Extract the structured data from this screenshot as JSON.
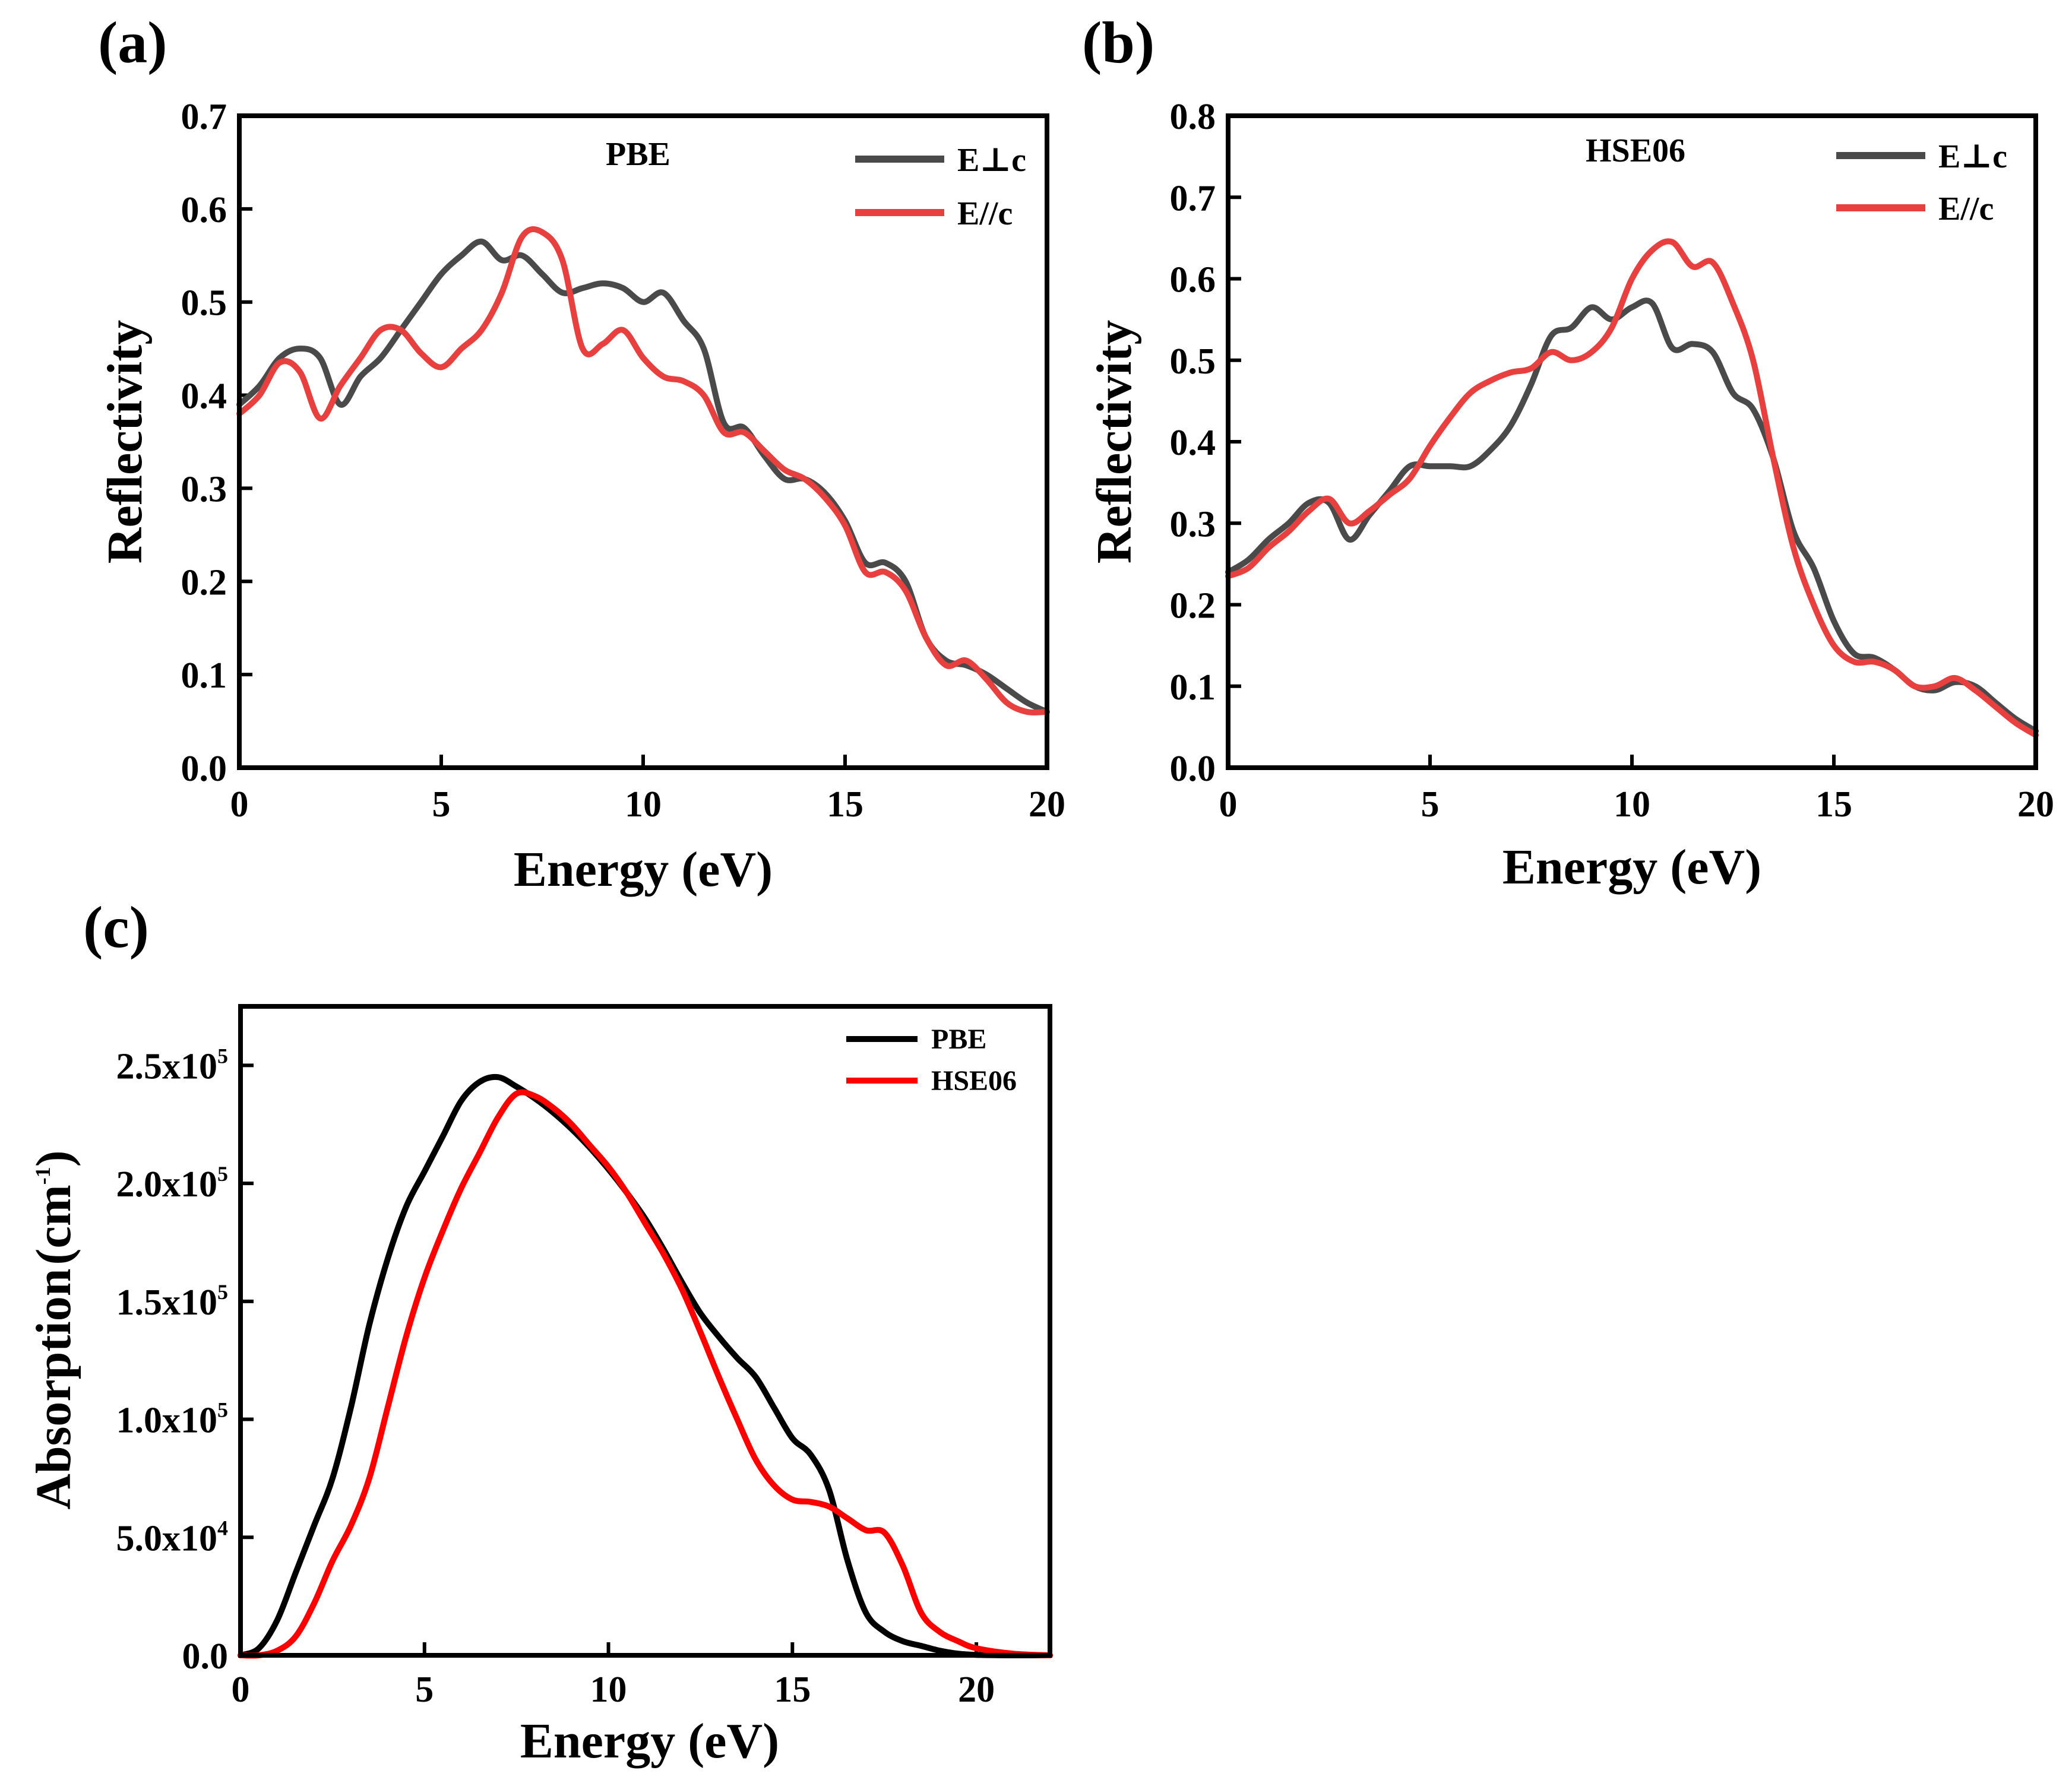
{
  "chart_data": [
    {
      "id": "a",
      "type": "line",
      "panel_label": "(a)",
      "title": "PBE",
      "xlabel": "Energy (eV)",
      "ylabel": "Reflectivity",
      "xlim": [
        0,
        20
      ],
      "ylim": [
        0,
        0.7
      ],
      "xticks": [
        0,
        5,
        10,
        15,
        20
      ],
      "yticks": [
        0.0,
        0.1,
        0.2,
        0.3,
        0.4,
        0.5,
        0.6,
        0.7
      ],
      "ytick_labels": [
        "0.0",
        "0.1",
        "0.2",
        "0.3",
        "0.4",
        "0.5",
        "0.6",
        "0.7"
      ],
      "legend_position": "top-right",
      "series": [
        {
          "name": "E⊥c",
          "color": "#4a4a4a",
          "x": [
            0,
            0.5,
            1,
            1.5,
            2,
            2.5,
            3,
            3.5,
            4,
            4.5,
            5,
            5.5,
            6,
            6.5,
            7,
            7.5,
            8,
            8.5,
            9,
            9.5,
            10,
            10.5,
            11,
            11.5,
            12,
            12.5,
            13,
            13.5,
            14,
            14.5,
            15,
            15.5,
            16,
            16.5,
            17,
            17.5,
            18,
            18.5,
            19,
            19.5,
            20
          ],
          "y": [
            0.39,
            0.41,
            0.44,
            0.45,
            0.44,
            0.39,
            0.42,
            0.44,
            0.47,
            0.5,
            0.53,
            0.55,
            0.565,
            0.545,
            0.55,
            0.53,
            0.51,
            0.515,
            0.52,
            0.515,
            0.5,
            0.51,
            0.48,
            0.45,
            0.37,
            0.365,
            0.335,
            0.31,
            0.31,
            0.295,
            0.265,
            0.22,
            0.22,
            0.2,
            0.14,
            0.115,
            0.11,
            0.1,
            0.085,
            0.07,
            0.06
          ]
        },
        {
          "name": "E//c",
          "color": "#e8403f",
          "x": [
            0,
            0.5,
            1,
            1.5,
            2,
            2.5,
            3,
            3.5,
            4,
            4.5,
            5,
            5.5,
            6,
            6.5,
            7,
            7.5,
            8,
            8.5,
            9,
            9.5,
            10,
            10.5,
            11,
            11.5,
            12,
            12.5,
            13,
            13.5,
            14,
            14.5,
            15,
            15.5,
            16,
            16.5,
            17,
            17.5,
            18,
            18.5,
            19,
            19.5,
            20
          ],
          "y": [
            0.38,
            0.4,
            0.435,
            0.425,
            0.375,
            0.41,
            0.44,
            0.47,
            0.47,
            0.445,
            0.43,
            0.45,
            0.47,
            0.51,
            0.57,
            0.575,
            0.545,
            0.45,
            0.455,
            0.47,
            0.44,
            0.42,
            0.415,
            0.4,
            0.36,
            0.36,
            0.34,
            0.32,
            0.31,
            0.29,
            0.26,
            0.21,
            0.21,
            0.19,
            0.14,
            0.11,
            0.115,
            0.095,
            0.07,
            0.06,
            0.06
          ]
        }
      ]
    },
    {
      "id": "b",
      "type": "line",
      "panel_label": "(b)",
      "title": "HSE06",
      "xlabel": "Energy (eV)",
      "ylabel": "Reflectivity",
      "xlim": [
        0,
        20
      ],
      "ylim": [
        0,
        0.8
      ],
      "xticks": [
        0,
        5,
        10,
        15,
        20
      ],
      "yticks": [
        0.0,
        0.1,
        0.2,
        0.3,
        0.4,
        0.5,
        0.6,
        0.7,
        0.8
      ],
      "ytick_labels": [
        "0.0",
        "0.1",
        "0.2",
        "0.3",
        "0.4",
        "0.5",
        "0.6",
        "0.7",
        "0.8"
      ],
      "legend_position": "top-right",
      "series": [
        {
          "name": "E⊥c",
          "color": "#4a4a4a",
          "x": [
            0,
            0.5,
            1,
            1.5,
            2,
            2.5,
            3,
            3.5,
            4,
            4.5,
            5,
            5.5,
            6,
            6.5,
            7,
            7.5,
            8,
            8.5,
            9,
            9.5,
            10,
            10.5,
            11,
            11.5,
            12,
            12.5,
            13,
            13.5,
            14,
            14.5,
            15,
            15.5,
            16,
            16.5,
            17,
            17.5,
            18,
            18.5,
            19,
            19.5,
            20
          ],
          "y": [
            0.24,
            0.255,
            0.28,
            0.3,
            0.325,
            0.325,
            0.28,
            0.31,
            0.34,
            0.37,
            0.37,
            0.37,
            0.37,
            0.39,
            0.42,
            0.47,
            0.53,
            0.54,
            0.565,
            0.55,
            0.565,
            0.57,
            0.515,
            0.52,
            0.51,
            0.46,
            0.44,
            0.38,
            0.29,
            0.245,
            0.18,
            0.14,
            0.135,
            0.12,
            0.1,
            0.095,
            0.105,
            0.1,
            0.08,
            0.06,
            0.045
          ]
        },
        {
          "name": "E//c",
          "color": "#e8403f",
          "x": [
            0,
            0.5,
            1,
            1.5,
            2,
            2.5,
            3,
            3.5,
            4,
            4.5,
            5,
            5.5,
            6,
            6.5,
            7,
            7.5,
            8,
            8.5,
            9,
            9.5,
            10,
            10.5,
            11,
            11.5,
            12,
            12.5,
            13,
            13.5,
            14,
            14.5,
            15,
            15.5,
            16,
            16.5,
            17,
            17.5,
            18,
            18.5,
            19,
            19.5,
            20
          ],
          "y": [
            0.235,
            0.245,
            0.27,
            0.29,
            0.315,
            0.33,
            0.3,
            0.315,
            0.335,
            0.355,
            0.395,
            0.43,
            0.46,
            0.475,
            0.485,
            0.49,
            0.51,
            0.5,
            0.51,
            0.54,
            0.6,
            0.635,
            0.645,
            0.615,
            0.62,
            0.57,
            0.5,
            0.38,
            0.27,
            0.2,
            0.15,
            0.13,
            0.13,
            0.12,
            0.1,
            0.1,
            0.11,
            0.095,
            0.075,
            0.055,
            0.04
          ]
        }
      ]
    },
    {
      "id": "c",
      "type": "line",
      "panel_label": "(c)",
      "title": "",
      "xlabel": "Energy (eV)",
      "ylabel": "Absorption (cm-1)",
      "ylabel_main": "Absorption",
      "ylabel_unit": "(cm",
      "ylabel_exp": "-1",
      "ylabel_close": ")",
      "xlim": [
        0,
        22
      ],
      "ylim": [
        0,
        275000
      ],
      "xticks": [
        0,
        5,
        10,
        15,
        20
      ],
      "yticks": [
        0,
        50000,
        100000,
        150000,
        200000,
        250000
      ],
      "ytick_labels": [
        {
          "base": "0.0",
          "exp": ""
        },
        {
          "base": "5.0x10",
          "exp": "4"
        },
        {
          "base": "1.0x10",
          "exp": "5"
        },
        {
          "base": "1.5x10",
          "exp": "5"
        },
        {
          "base": "2.0x10",
          "exp": "5"
        },
        {
          "base": "2.5x10",
          "exp": "5"
        }
      ],
      "legend_position": "top-right",
      "series": [
        {
          "name": "PBE",
          "color": "#000000",
          "x": [
            0,
            0.5,
            1,
            1.5,
            2,
            2.5,
            3,
            3.5,
            4,
            4.5,
            5,
            5.5,
            6,
            6.5,
            7,
            7.5,
            8,
            8.5,
            9,
            9.5,
            10,
            10.5,
            11,
            11.5,
            12,
            12.5,
            13,
            13.5,
            14,
            14.5,
            15,
            15.5,
            16,
            16.5,
            17,
            17.5,
            18,
            18.5,
            19,
            19.5,
            20,
            21,
            22
          ],
          "y": [
            0,
            3000,
            15000,
            35000,
            55000,
            75000,
            105000,
            140000,
            168000,
            190000,
            205000,
            220000,
            235000,
            243000,
            245000,
            241000,
            236000,
            230000,
            223000,
            215000,
            206000,
            196000,
            185000,
            172000,
            158000,
            145000,
            135000,
            126000,
            118000,
            105000,
            92000,
            85000,
            70000,
            40000,
            18000,
            10000,
            6000,
            4000,
            2000,
            700,
            200,
            0,
            0
          ]
        },
        {
          "name": "HSE06",
          "color": "#ff0000",
          "x": [
            0,
            0.5,
            1,
            1.5,
            2,
            2.5,
            3,
            3.5,
            4,
            4.5,
            5,
            5.5,
            6,
            6.5,
            7,
            7.5,
            8,
            8.5,
            9,
            9.5,
            10,
            10.5,
            11,
            11.5,
            12,
            12.5,
            13,
            13.5,
            14,
            14.5,
            15,
            15.5,
            16,
            16.5,
            17,
            17.5,
            18,
            18.5,
            19,
            19.5,
            20,
            21,
            22
          ],
          "y": [
            0,
            0,
            2000,
            8000,
            22000,
            40000,
            55000,
            75000,
            105000,
            135000,
            160000,
            180000,
            198000,
            213000,
            228000,
            238000,
            237000,
            232000,
            225000,
            216000,
            207000,
            196000,
            183000,
            170000,
            155000,
            137000,
            118000,
            100000,
            83000,
            72000,
            66000,
            65000,
            63000,
            58000,
            53000,
            52000,
            38000,
            18000,
            10000,
            6000,
            3000,
            700,
            0
          ]
        }
      ]
    }
  ]
}
